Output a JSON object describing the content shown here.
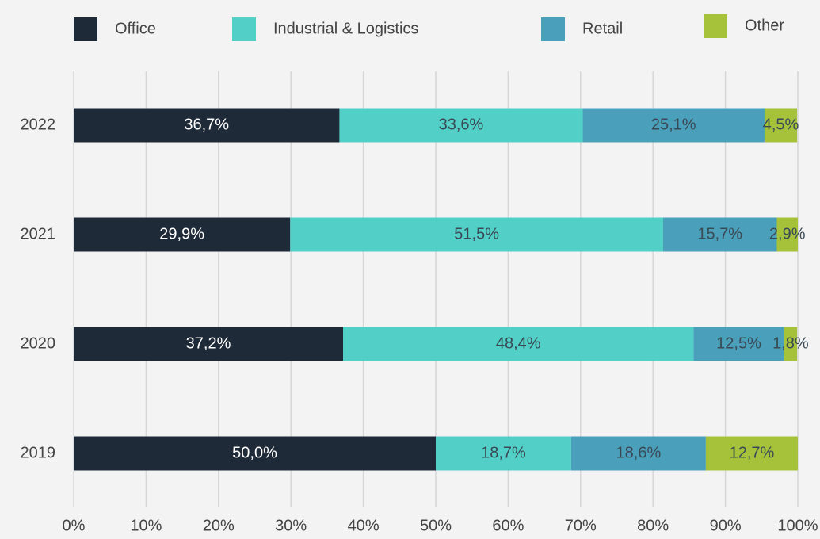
{
  "chart_data": {
    "type": "stacked_bar_horizontal",
    "categories": [
      "2022",
      "2021",
      "2020",
      "2019"
    ],
    "series": [
      {
        "name": "Office",
        "color": "#1f2a38",
        "values": [
          36.7,
          29.9,
          37.2,
          50.0
        ],
        "value_labels": [
          "36,7%",
          "29,9%",
          "37,2%",
          "50,0%"
        ]
      },
      {
        "name": "Industrial & Logistics",
        "color": "#52cfc7",
        "values": [
          33.6,
          51.5,
          48.4,
          18.7
        ],
        "value_labels": [
          "33,6%",
          "51,5%",
          "48,4%",
          "18,7%"
        ]
      },
      {
        "name": "Retail",
        "color": "#4aa0bb",
        "values": [
          25.1,
          15.7,
          12.5,
          18.6
        ],
        "value_labels": [
          "25,1%",
          "15,7%",
          "12,5%",
          "18,6%"
        ]
      },
      {
        "name": "Other",
        "color": "#a5c23a",
        "values": [
          4.5,
          2.9,
          1.8,
          12.7
        ],
        "value_labels": [
          "4,5%",
          "2,9%",
          "1,8%",
          "12,7%"
        ]
      }
    ],
    "xlim": [
      0,
      100
    ],
    "xticks": [
      {
        "value": 0,
        "label": "0%"
      },
      {
        "value": 10,
        "label": "10%"
      },
      {
        "value": 20,
        "label": "20%"
      },
      {
        "value": 30,
        "label": "30%"
      },
      {
        "value": 40,
        "label": "40%"
      },
      {
        "value": 50,
        "label": "50%"
      },
      {
        "value": 60,
        "label": "60%"
      },
      {
        "value": 70,
        "label": "70%"
      },
      {
        "value": 80,
        "label": "80%"
      },
      {
        "value": 90,
        "label": "90%"
      },
      {
        "value": 100,
        "label": "100%"
      }
    ],
    "grid": true,
    "legend": "top"
  }
}
